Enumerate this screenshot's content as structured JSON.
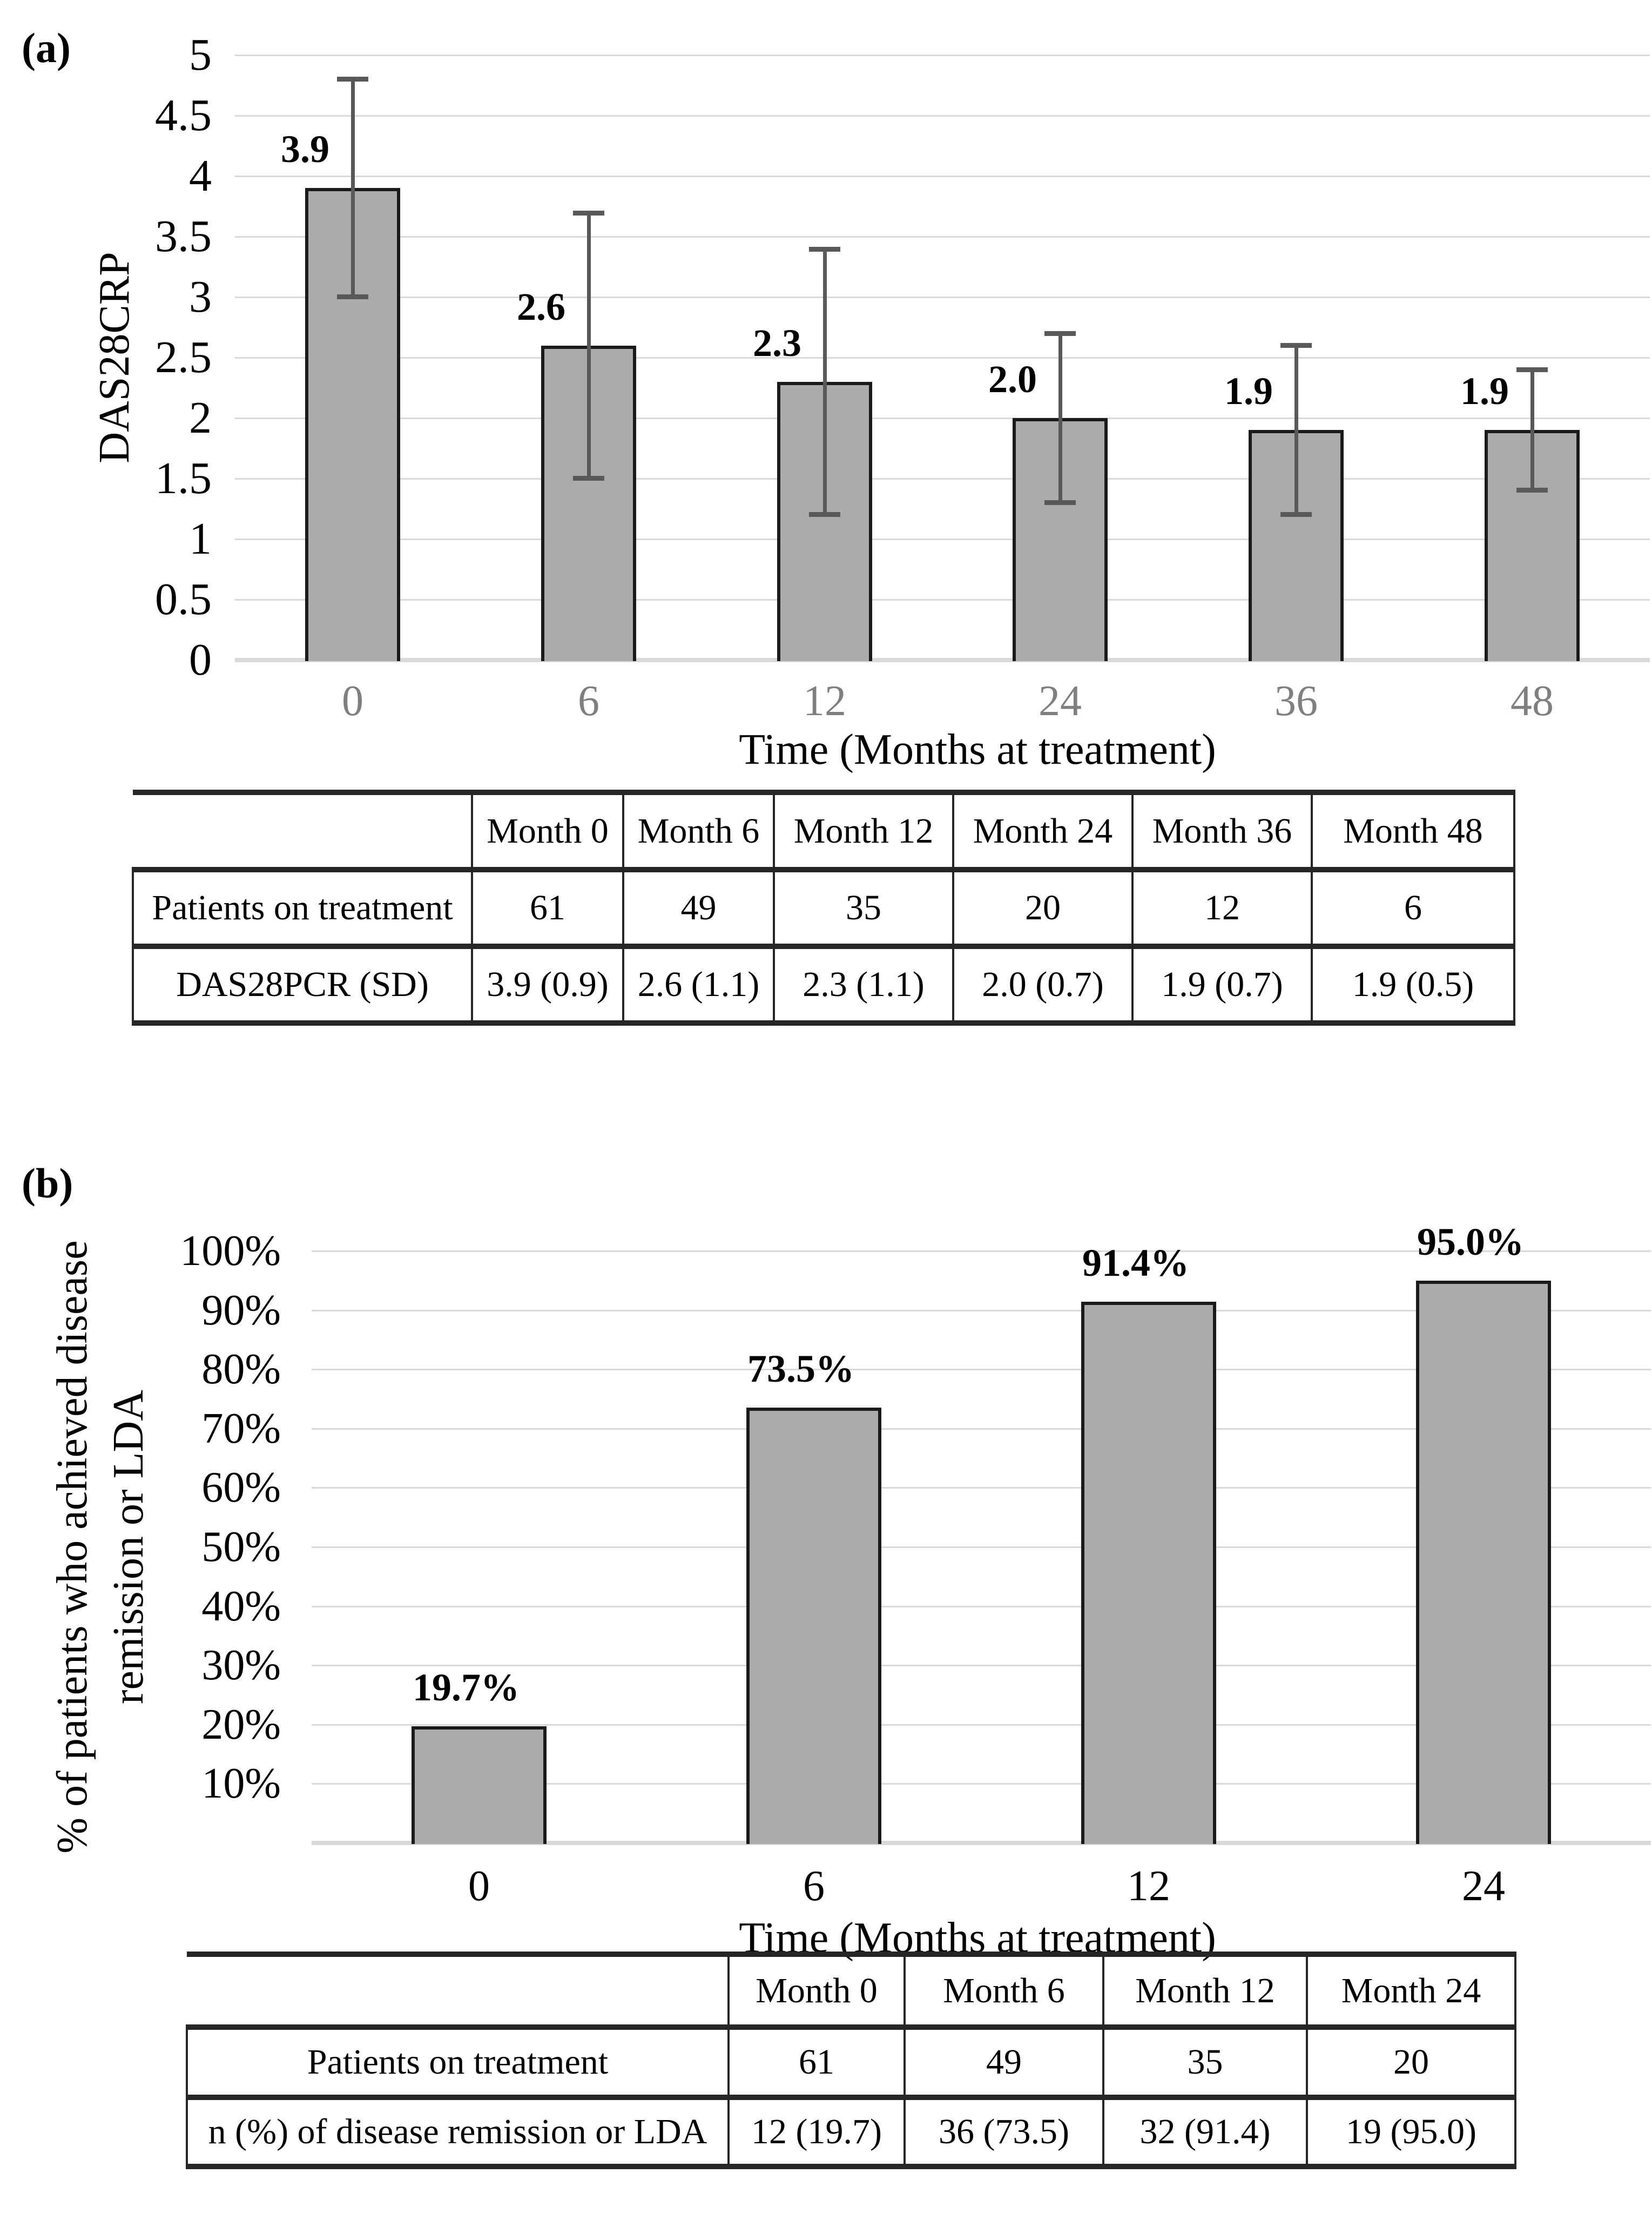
{
  "figure": {
    "panel_a_label": "(a)",
    "panel_b_label": "(b)"
  },
  "chart_data": [
    {
      "id": "a",
      "type": "bar",
      "title": "",
      "ylabel": "DAS28CRP",
      "xlabel": "Time (Months at treatment)",
      "categories": [
        "0",
        "6",
        "12",
        "24",
        "36",
        "48"
      ],
      "values": [
        3.9,
        2.6,
        2.3,
        2.0,
        1.9,
        1.9
      ],
      "value_labels": [
        "3.9",
        "2.6",
        "2.3",
        "2.0",
        "1.9",
        "1.9"
      ],
      "error_sd": [
        0.9,
        1.1,
        1.1,
        0.7,
        0.7,
        0.5
      ],
      "ylim": [
        0,
        5
      ],
      "ytick_step": 0.5,
      "ytick_labels": [
        "0",
        "0.5",
        "1",
        "1.5",
        "2",
        "2.5",
        "3",
        "3.5",
        "4",
        "4.5",
        "5"
      ],
      "grid": true,
      "legend": "none",
      "bar_color": "#ababab",
      "bar_border_color": "#1a1a1a",
      "error_color": "#595959",
      "grid_color": "#d9d9d9",
      "xtick_color": "#7f7f7f",
      "ytick_color": "#000000"
    },
    {
      "id": "b",
      "type": "bar",
      "title": "",
      "ylabel": "% of patients who achieved disease\nremission or LDA",
      "xlabel": "Time (Months at treatment)",
      "categories": [
        "0",
        "6",
        "12",
        "24"
      ],
      "values": [
        19.7,
        73.5,
        91.4,
        95.0
      ],
      "value_labels": [
        "19.7%",
        "73.5%",
        "91.4%",
        "95.0%"
      ],
      "ylim": [
        0,
        100
      ],
      "ytick_step": 10,
      "ytick_labels": [
        "",
        "10%",
        "20%",
        "30%",
        "40%",
        "50%",
        "60%",
        "70%",
        "80%",
        "90%",
        "100%"
      ],
      "grid": true,
      "legend": "none",
      "bar_color": "#ababab",
      "bar_border_color": "#1a1a1a",
      "grid_color": "#d9d9d9",
      "xtick_color": "#000000",
      "ytick_color": "#000000"
    }
  ],
  "tables": {
    "a": {
      "headers": [
        "",
        "Month 0",
        "Month 6",
        "Month 12",
        "Month 24",
        "Month 36",
        "Month 48"
      ],
      "rows": [
        {
          "label": "Patients on treatment",
          "cells": [
            "61",
            "49",
            "35",
            "20",
            "12",
            "6"
          ]
        },
        {
          "label": "DAS28PCR (SD)",
          "cells": [
            "3.9 (0.9)",
            "2.6 (1.1)",
            "2.3 (1.1)",
            "2.0 (0.7)",
            "1.9 (0.7)",
            "1.9 (0.5)"
          ]
        }
      ]
    },
    "b": {
      "headers": [
        "",
        "Month 0",
        "Month 6",
        "Month 12",
        "Month 24"
      ],
      "rows": [
        {
          "label": "Patients on treatment",
          "cells": [
            "61",
            "49",
            "35",
            "20"
          ]
        },
        {
          "label": "n (%) of disease remission or LDA",
          "cells": [
            "12 (19.7)",
            "36 (73.5)",
            "32 (91.4)",
            "19 (95.0)"
          ]
        }
      ]
    }
  }
}
